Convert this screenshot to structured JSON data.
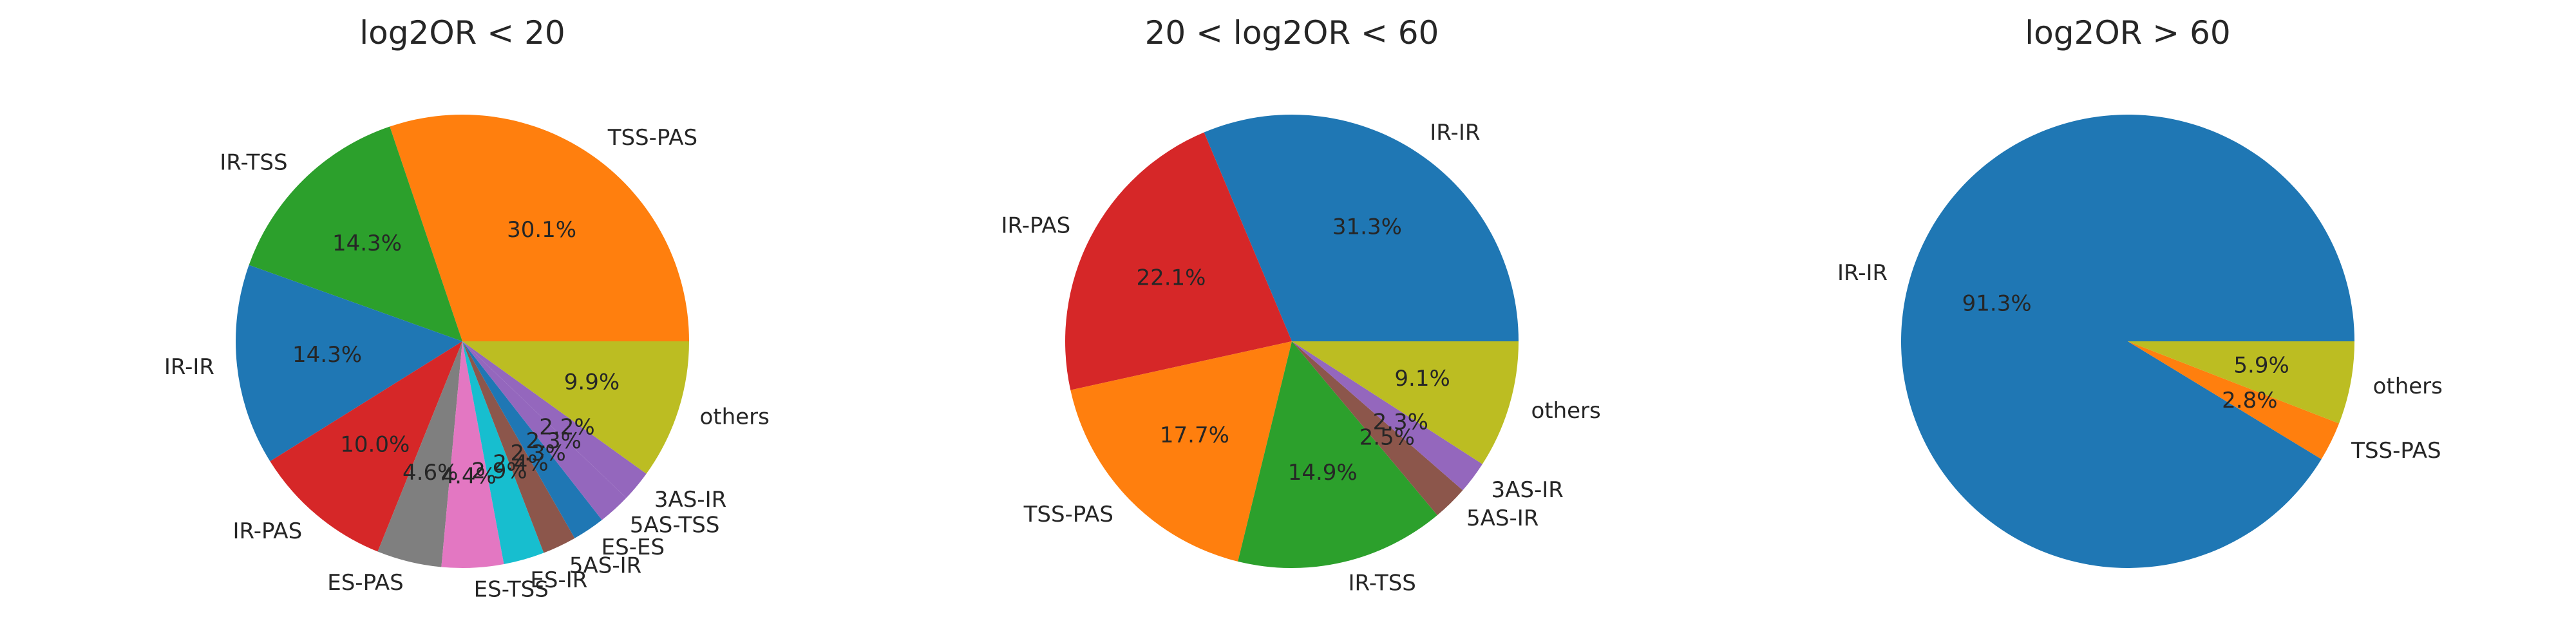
{
  "chart_data": [
    {
      "type": "pie",
      "title": "log2OR < 20",
      "slices": [
        {
          "label": "TSS-PAS",
          "pct": "30.1%",
          "value": 30.1,
          "color": "#ff7f0e"
        },
        {
          "label": "IR-TSS",
          "pct": "14.3%",
          "value": 14.3,
          "color": "#2ca02c"
        },
        {
          "label": "IR-IR",
          "pct": "14.3%",
          "value": 14.3,
          "color": "#1f77b4"
        },
        {
          "label": "IR-PAS",
          "pct": "10.0%",
          "value": 10.0,
          "color": "#d62728"
        },
        {
          "label": "ES-PAS",
          "pct": "4.6%",
          "value": 4.6,
          "color": "#7f7f7f"
        },
        {
          "label": "ES-TSS",
          "pct": "4.4%",
          "value": 4.4,
          "color": "#e377c2"
        },
        {
          "label": "ES-IR",
          "pct": "2.9%",
          "value": 2.9,
          "color": "#17becf"
        },
        {
          "label": "5AS-IR",
          "pct": "2.4%",
          "value": 2.4,
          "color": "#8c564b"
        },
        {
          "label": "ES-ES",
          "pct": "2.3%",
          "value": 2.3,
          "color": "#1f77b4"
        },
        {
          "label": "5AS-TSS",
          "pct": "2.3%",
          "value": 2.3,
          "color": "#9467bd"
        },
        {
          "label": "3AS-IR",
          "pct": "2.2%",
          "value": 2.2,
          "color": "#9467bd"
        },
        {
          "label": "others",
          "pct": "9.9%",
          "value": 9.9,
          "color": "#bcbd22"
        }
      ]
    },
    {
      "type": "pie",
      "title": "20 < log2OR < 60",
      "slices": [
        {
          "label": "IR-IR",
          "pct": "31.3%",
          "value": 31.3,
          "color": "#1f77b4"
        },
        {
          "label": "IR-PAS",
          "pct": "22.1%",
          "value": 22.1,
          "color": "#d62728"
        },
        {
          "label": "TSS-PAS",
          "pct": "17.7%",
          "value": 17.7,
          "color": "#ff7f0e"
        },
        {
          "label": "IR-TSS",
          "pct": "14.9%",
          "value": 14.9,
          "color": "#2ca02c"
        },
        {
          "label": "5AS-IR",
          "pct": "2.5%",
          "value": 2.5,
          "color": "#8c564b"
        },
        {
          "label": "3AS-IR",
          "pct": "2.3%",
          "value": 2.3,
          "color": "#9467bd"
        },
        {
          "label": "others",
          "pct": "9.1%",
          "value": 9.1,
          "color": "#bcbd22"
        }
      ]
    },
    {
      "type": "pie",
      "title": "log2OR > 60",
      "slices": [
        {
          "label": "IR-IR",
          "pct": "91.3%",
          "value": 91.3,
          "color": "#1f77b4"
        },
        {
          "label": "TSS-PAS",
          "pct": "2.8%",
          "value": 2.8,
          "color": "#ff7f0e"
        },
        {
          "label": "others",
          "pct": "5.9%",
          "value": 5.9,
          "color": "#bcbd22"
        }
      ]
    }
  ]
}
